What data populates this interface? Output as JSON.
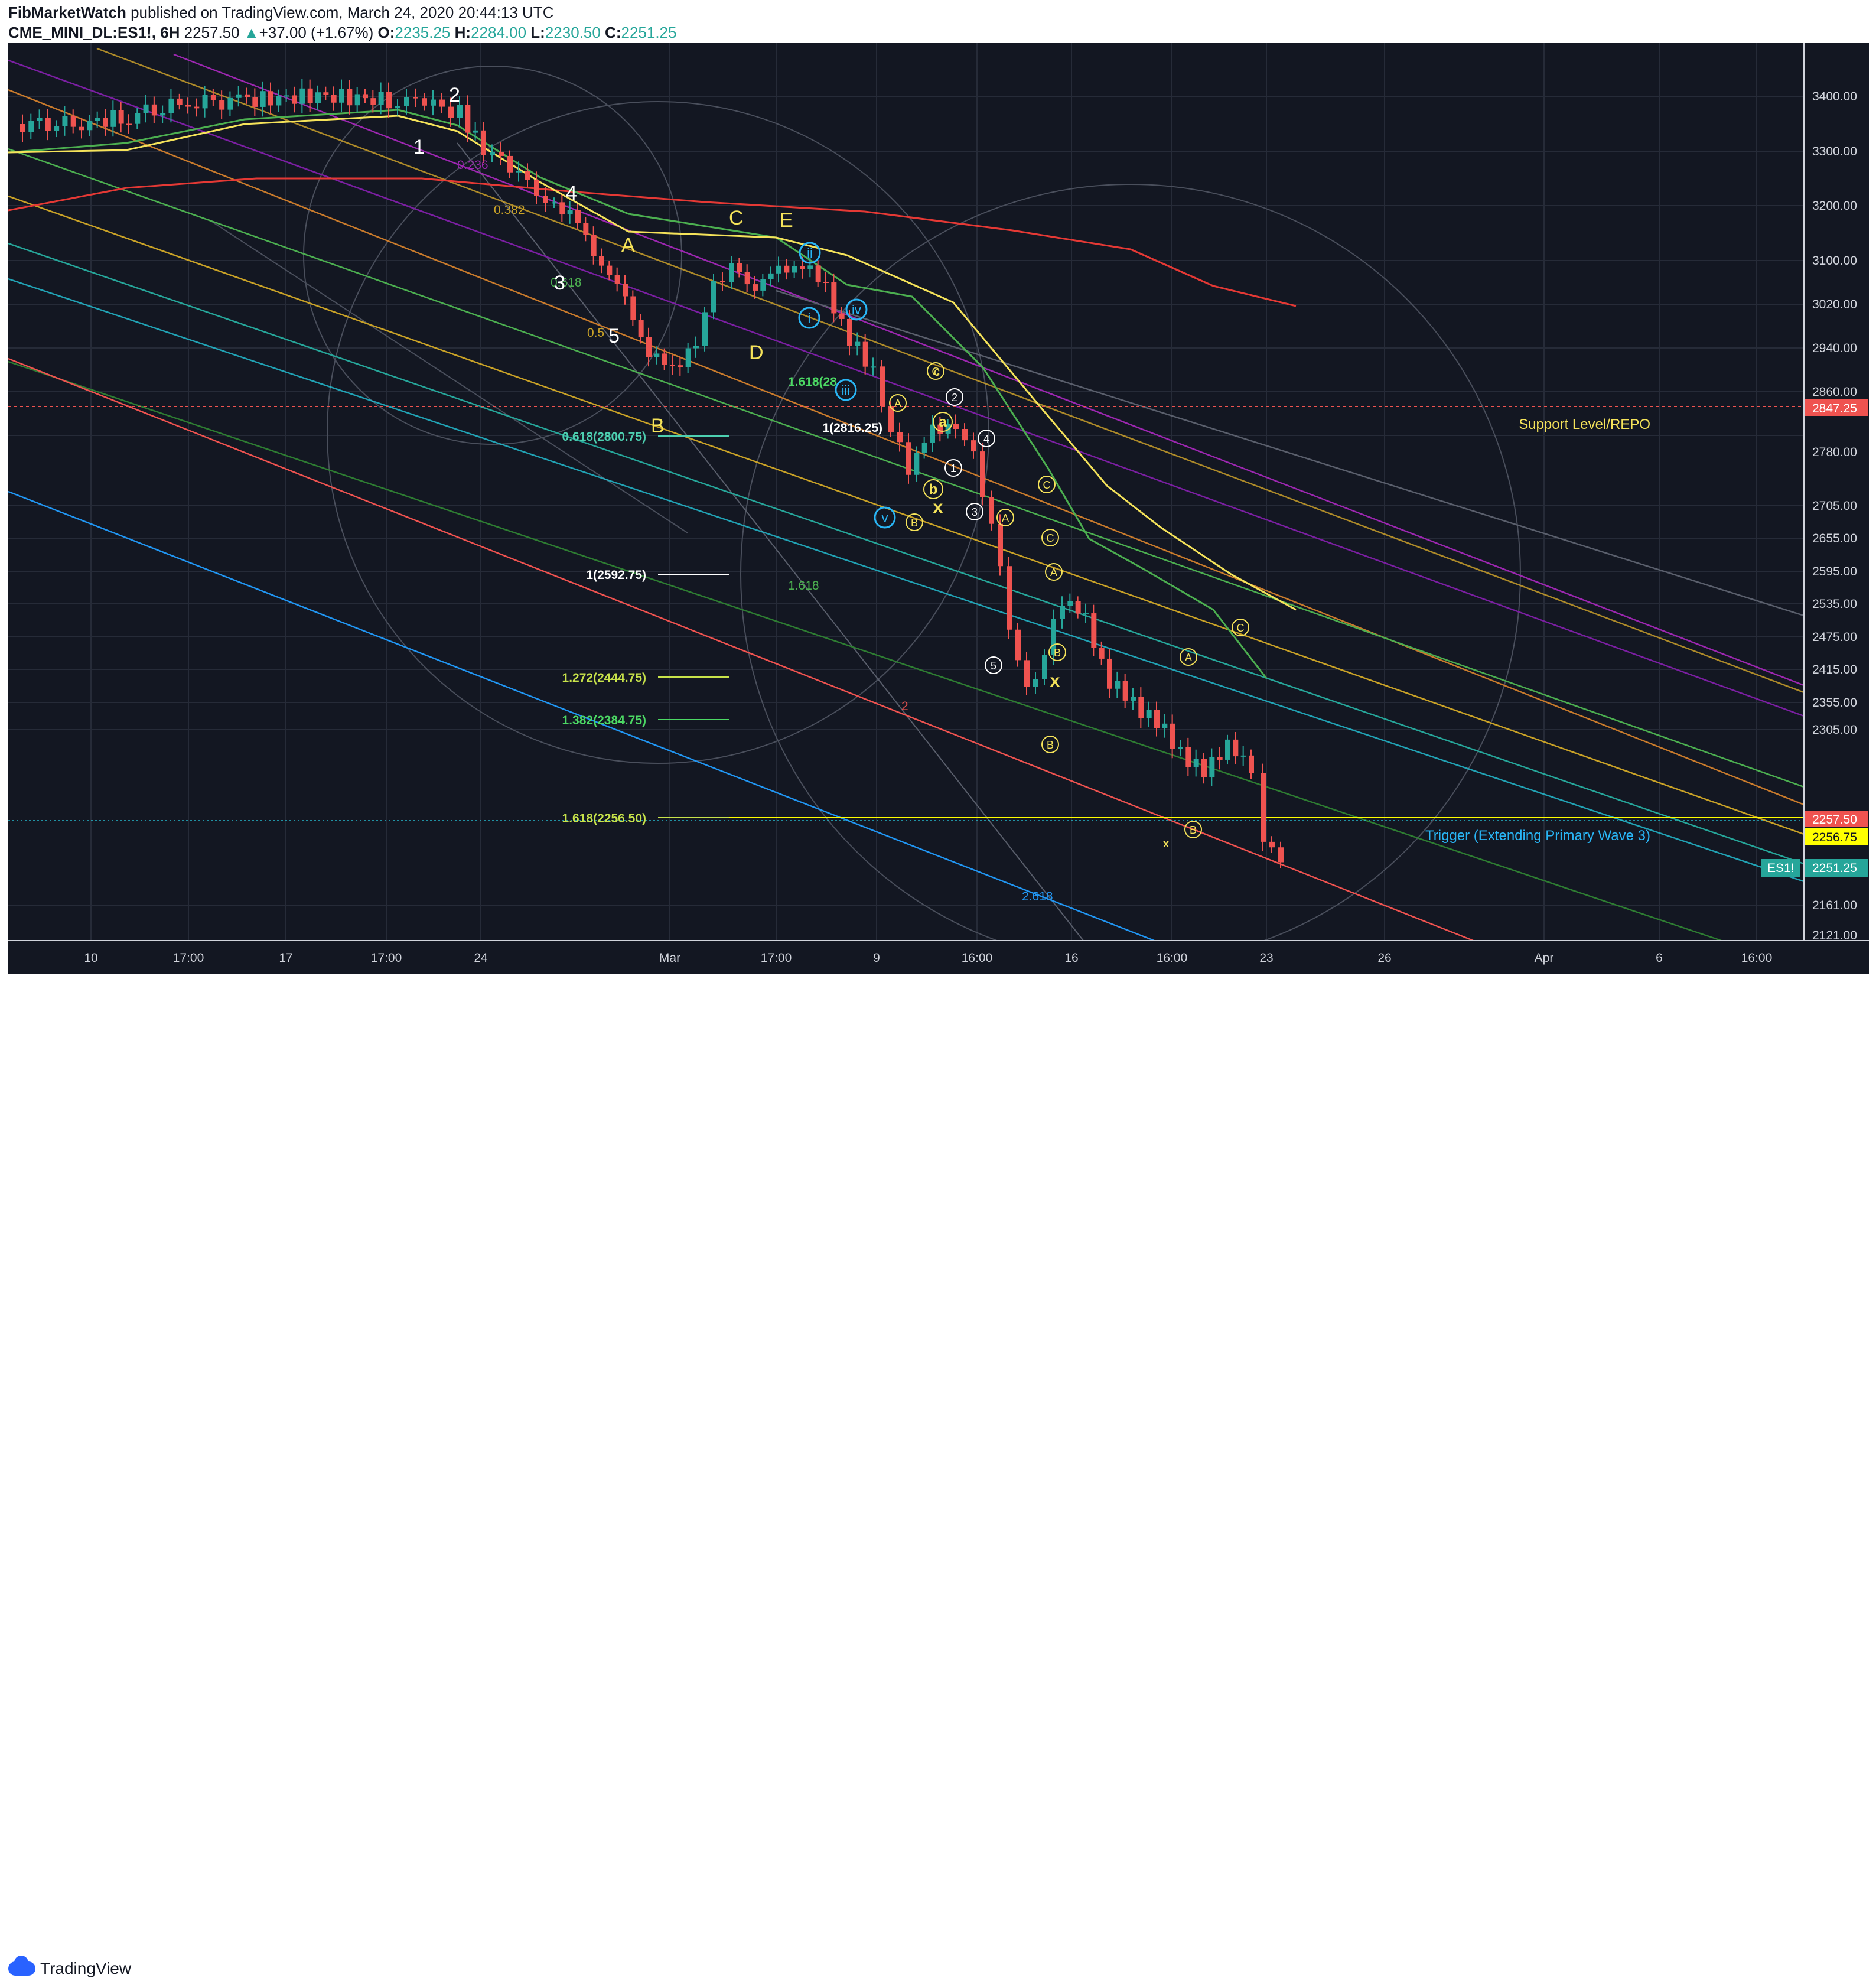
{
  "header": {
    "author": "FibMarketWatch",
    "published_text": " published on TradingView.com, March 24, 2020 20:44:13 UTC",
    "symbol": "CME_MINI_DL:ES1!, 6H",
    "last": "2257.50",
    "change": "+37.00 (+1.67%)",
    "open_label": "O:",
    "open": "2235.25",
    "high_label": "H:",
    "high": "2284.00",
    "low_label": "L:",
    "low": "2230.50",
    "close_label": "C:",
    "close": "2251.25"
  },
  "footer": {
    "brand": "TradingView"
  },
  "colors": {
    "background": "#131722",
    "bull": "#26a69a",
    "bear": "#ef5350",
    "grid": "#2a2e39",
    "text_axis": "#d1d4dc",
    "accent_yellow": "#f0e63c"
  },
  "price_axis": {
    "ticks": [
      "3400.00",
      "3300.00",
      "3200.00",
      "3100.00",
      "3020.00",
      "2940.00",
      "2860.00",
      "2780.00",
      "2705.00",
      "2655.00",
      "2595.00",
      "2535.00",
      "2475.00",
      "2415.00",
      "2355.00",
      "2305.00",
      "2161.00",
      "2121.00"
    ],
    "badges": [
      {
        "text": "2847.25",
        "bg": "#ef5350",
        "fg": "#ffffff"
      },
      {
        "text": "2257.50",
        "bg": "#ef5350",
        "fg": "#ffffff"
      },
      {
        "text": "2256.75",
        "bg": "#ffff00",
        "fg": "#131722"
      },
      {
        "text": "ES1!",
        "bg": "#26a69a",
        "fg": "#ffffff"
      },
      {
        "text": "2251.25",
        "bg": "#26a69a",
        "fg": "#ffffff"
      }
    ]
  },
  "time_axis": {
    "ticks": [
      "10",
      "17:00",
      "17",
      "17:00",
      "24",
      "Mar",
      "17:00",
      "9",
      "16:00",
      "16",
      "16:00",
      "23",
      "26",
      "Apr",
      "6",
      "16:00"
    ]
  },
  "annotations": {
    "support_label": "Support Level/REPO",
    "trigger_label": "Trigger (Extending Primary Wave 3)",
    "fib_levels": [
      {
        "text": "0.618(2800.75)",
        "color": "#4dd0b1"
      },
      {
        "text": "1(2816.25)",
        "color": "#ffffff"
      },
      {
        "text": "1.618(28",
        "color": "#4cd964"
      },
      {
        "text": "1(2592.75)",
        "color": "#ffffff"
      },
      {
        "text": "1.272(2444.75)",
        "color": "#c8e34a"
      },
      {
        "text": "1.382(2384.75)",
        "color": "#4cd964"
      },
      {
        "text": "1.618(2256.50)",
        "color": "#c8e34a"
      }
    ],
    "fan_labels": [
      {
        "text": "0.236",
        "color": "#9c27b0"
      },
      {
        "text": "0.382",
        "color": "#c9a227"
      },
      {
        "text": "0.618",
        "color": "#4caf50"
      },
      {
        "text": "0.5",
        "color": "#c9a227"
      },
      {
        "text": "1.618",
        "color": "#4caf50"
      },
      {
        "text": "2",
        "color": "#ef5350"
      },
      {
        "text": "2.618",
        "color": "#2196f3"
      }
    ],
    "waves_white": [
      "1",
      "2",
      "3",
      "4",
      "5"
    ],
    "waves_yellow": [
      "A",
      "B",
      "C",
      "D",
      "E"
    ],
    "circled_blue": [
      "i",
      "ii",
      "iii",
      "iv",
      "v"
    ],
    "circled_white": [
      "1",
      "2",
      "3",
      "4",
      "5"
    ],
    "circled_yellow": [
      "A",
      "B",
      "C",
      "A",
      "B",
      "C",
      "A",
      "B",
      "C",
      "B",
      "C"
    ],
    "small_yellow": [
      "a",
      "b",
      "c",
      "x",
      "x",
      "x"
    ]
  }
}
